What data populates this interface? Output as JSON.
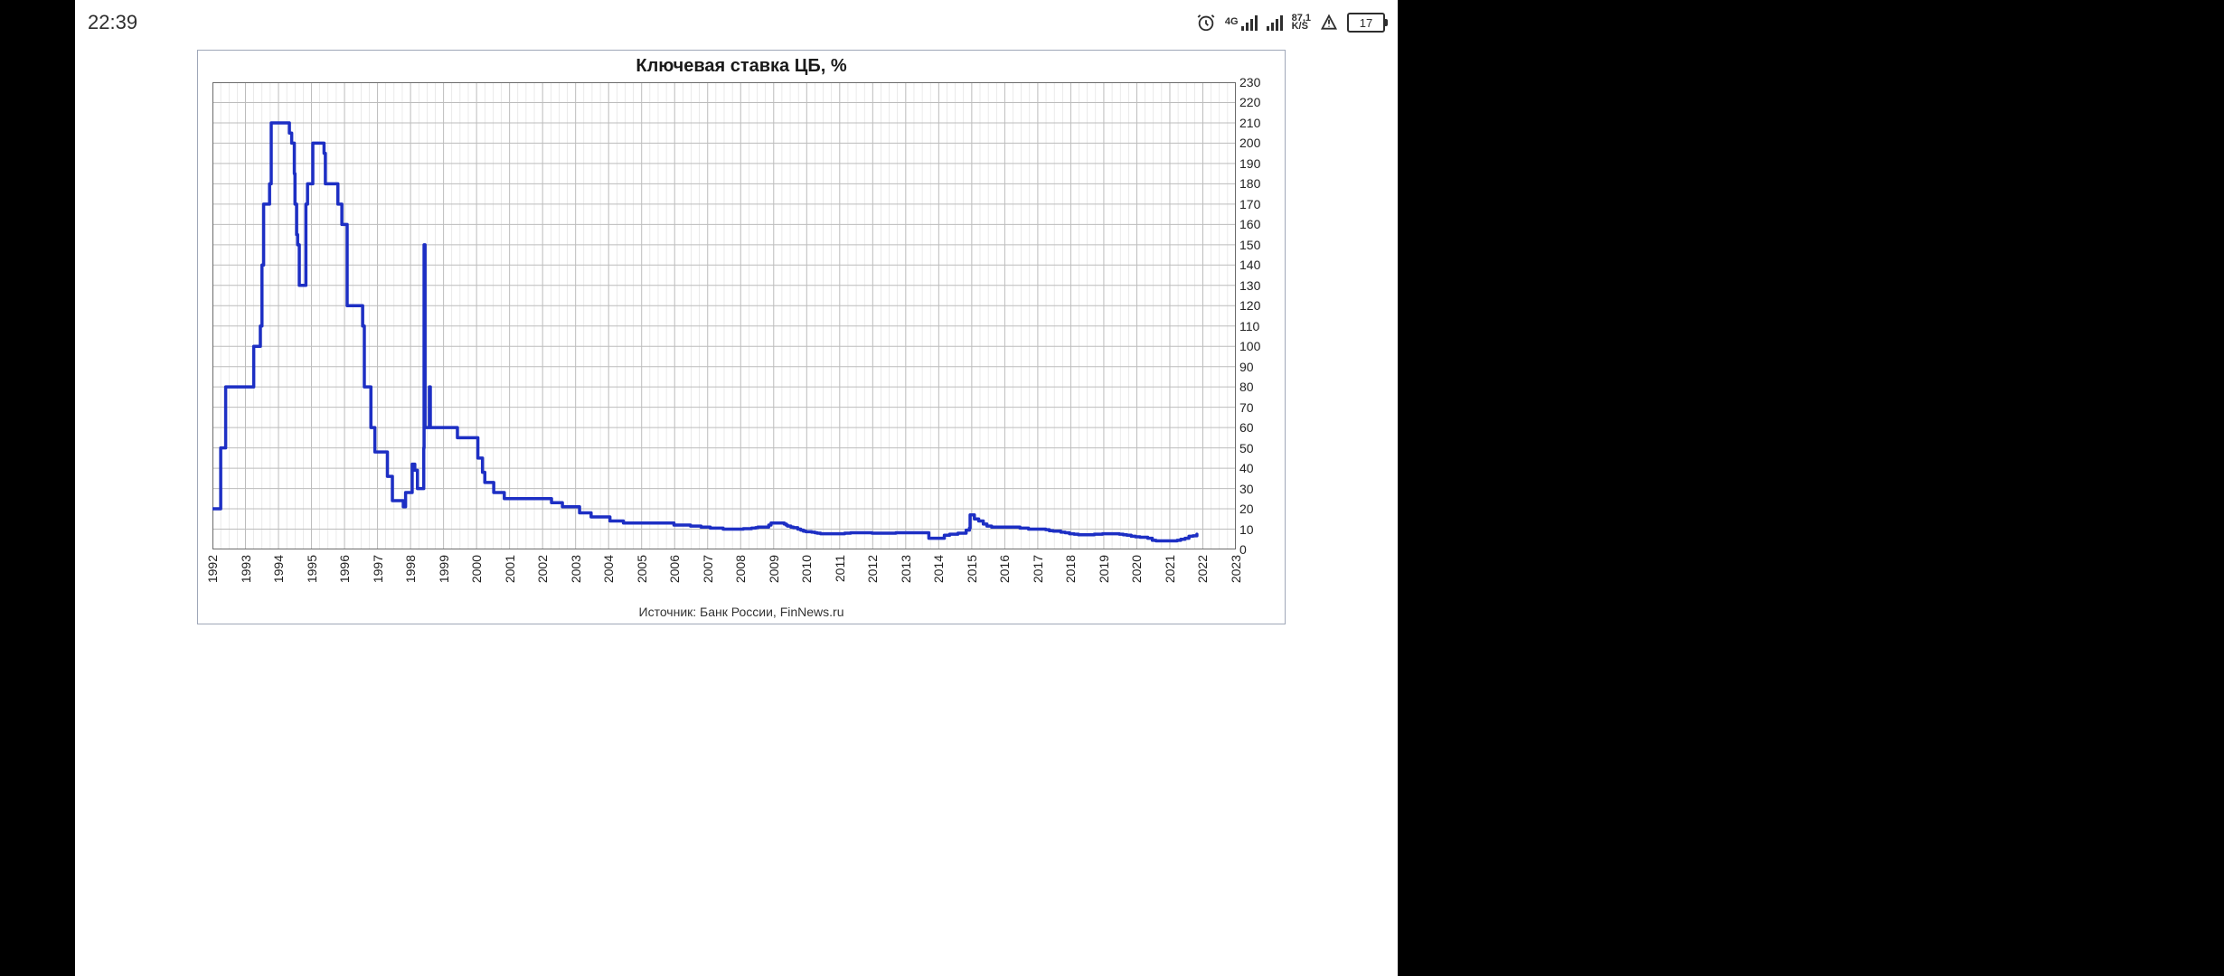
{
  "status_bar": {
    "time": "22:39",
    "network_type": "4G",
    "network_sub": "K/S",
    "data_rate": "87,1",
    "battery_percent": "17"
  },
  "chart": {
    "type": "line",
    "title": "Ключевая ставка ЦБ, %",
    "source": "Источник: Банк России, FinNews.ru",
    "line_color": "#1d2fc4",
    "line_width": 3.5,
    "background_color": "#ffffff",
    "grid_major_color": "#bcbcbc",
    "grid_minor_color": "#dddddd",
    "border_color": "#9fa7b8",
    "x": {
      "min": 1992,
      "max": 2023,
      "tick_step": 1,
      "minor_per_major": 4,
      "labels": [
        "1992",
        "1993",
        "1994",
        "1995",
        "1996",
        "1997",
        "1998",
        "1999",
        "2000",
        "2001",
        "2002",
        "2003",
        "2004",
        "2005",
        "2006",
        "2007",
        "2008",
        "2009",
        "2010",
        "2011",
        "2012",
        "2013",
        "2014",
        "2015",
        "2016",
        "2017",
        "2018",
        "2019",
        "2020",
        "2021",
        "2022",
        "2023"
      ]
    },
    "y": {
      "min": 0,
      "max": 230,
      "tick_step": 10,
      "minor_per_major": 1,
      "labels": [
        "0",
        "10",
        "20",
        "30",
        "40",
        "50",
        "60",
        "70",
        "80",
        "90",
        "100",
        "110",
        "120",
        "130",
        "140",
        "150",
        "160",
        "170",
        "180",
        "190",
        "200",
        "210",
        "220",
        "230"
      ]
    },
    "series": [
      {
        "name": "key_rate",
        "points": [
          [
            1992.0,
            20
          ],
          [
            1992.08,
            20
          ],
          [
            1992.25,
            50
          ],
          [
            1992.4,
            80
          ],
          [
            1993.0,
            80
          ],
          [
            1993.25,
            100
          ],
          [
            1993.45,
            110
          ],
          [
            1993.5,
            140
          ],
          [
            1993.55,
            170
          ],
          [
            1993.73,
            180
          ],
          [
            1993.78,
            210
          ],
          [
            1994.3,
            210
          ],
          [
            1994.33,
            205
          ],
          [
            1994.4,
            200
          ],
          [
            1994.48,
            185
          ],
          [
            1994.5,
            170
          ],
          [
            1994.55,
            155
          ],
          [
            1994.58,
            150
          ],
          [
            1994.63,
            130
          ],
          [
            1994.79,
            130
          ],
          [
            1994.83,
            170
          ],
          [
            1994.88,
            180
          ],
          [
            1995.04,
            200
          ],
          [
            1995.38,
            195
          ],
          [
            1995.42,
            180
          ],
          [
            1995.5,
            180
          ],
          [
            1995.8,
            170
          ],
          [
            1995.92,
            160
          ],
          [
            1996.08,
            120
          ],
          [
            1996.55,
            110
          ],
          [
            1996.6,
            80
          ],
          [
            1996.8,
            60
          ],
          [
            1996.92,
            48
          ],
          [
            1997.3,
            36
          ],
          [
            1997.45,
            24
          ],
          [
            1997.78,
            21
          ],
          [
            1997.85,
            28
          ],
          [
            1998.05,
            42
          ],
          [
            1998.13,
            39
          ],
          [
            1998.21,
            30
          ],
          [
            1998.38,
            30
          ],
          [
            1998.4,
            50
          ],
          [
            1998.41,
            150
          ],
          [
            1998.44,
            60
          ],
          [
            1998.45,
            60
          ],
          [
            1998.57,
            80
          ],
          [
            1998.6,
            60
          ],
          [
            1999.42,
            55
          ],
          [
            2000.04,
            45
          ],
          [
            2000.18,
            38
          ],
          [
            2000.25,
            33
          ],
          [
            2000.52,
            28
          ],
          [
            2000.84,
            25
          ],
          [
            2001.84,
            25
          ],
          [
            2002.27,
            23
          ],
          [
            2002.6,
            21
          ],
          [
            2003.12,
            18
          ],
          [
            2003.47,
            16
          ],
          [
            2004.04,
            14
          ],
          [
            2004.45,
            13
          ],
          [
            2005.98,
            12
          ],
          [
            2006.48,
            11.5
          ],
          [
            2006.8,
            11
          ],
          [
            2007.08,
            10.5
          ],
          [
            2007.47,
            10
          ],
          [
            2008.08,
            10.25
          ],
          [
            2008.33,
            10.5
          ],
          [
            2008.45,
            10.75
          ],
          [
            2008.52,
            11
          ],
          [
            2008.85,
            12
          ],
          [
            2008.92,
            13
          ],
          [
            2009.32,
            12.5
          ],
          [
            2009.38,
            12
          ],
          [
            2009.42,
            11.5
          ],
          [
            2009.52,
            11
          ],
          [
            2009.6,
            10.75
          ],
          [
            2009.73,
            10
          ],
          [
            2009.82,
            9.5
          ],
          [
            2009.9,
            9
          ],
          [
            2009.98,
            8.75
          ],
          [
            2010.15,
            8.5
          ],
          [
            2010.25,
            8.25
          ],
          [
            2010.32,
            8
          ],
          [
            2010.42,
            7.75
          ],
          [
            2011.15,
            8
          ],
          [
            2011.33,
            8.25
          ],
          [
            2011.98,
            8
          ],
          [
            2012.7,
            8.25
          ],
          [
            2013.7,
            5.5
          ],
          [
            2014.17,
            7
          ],
          [
            2014.33,
            7.5
          ],
          [
            2014.58,
            8
          ],
          [
            2014.83,
            9.5
          ],
          [
            2014.93,
            10.5
          ],
          [
            2014.95,
            17
          ],
          [
            2015.08,
            15
          ],
          [
            2015.21,
            14
          ],
          [
            2015.35,
            12.5
          ],
          [
            2015.46,
            11.5
          ],
          [
            2015.6,
            11
          ],
          [
            2016.46,
            10.5
          ],
          [
            2016.72,
            10
          ],
          [
            2017.24,
            9.75
          ],
          [
            2017.35,
            9.25
          ],
          [
            2017.47,
            9
          ],
          [
            2017.7,
            8.5
          ],
          [
            2017.83,
            8.25
          ],
          [
            2017.96,
            7.75
          ],
          [
            2018.1,
            7.5
          ],
          [
            2018.23,
            7.25
          ],
          [
            2018.71,
            7.5
          ],
          [
            2018.96,
            7.75
          ],
          [
            2019.47,
            7.5
          ],
          [
            2019.59,
            7.25
          ],
          [
            2019.7,
            7
          ],
          [
            2019.83,
            6.5
          ],
          [
            2019.96,
            6.25
          ],
          [
            2020.1,
            6
          ],
          [
            2020.33,
            5.5
          ],
          [
            2020.47,
            4.5
          ],
          [
            2020.58,
            4.25
          ],
          [
            2021.22,
            4.5
          ],
          [
            2021.33,
            5
          ],
          [
            2021.46,
            5.5
          ],
          [
            2021.58,
            6.5
          ],
          [
            2021.7,
            6.75
          ],
          [
            2021.82,
            7.5
          ]
        ]
      }
    ]
  }
}
